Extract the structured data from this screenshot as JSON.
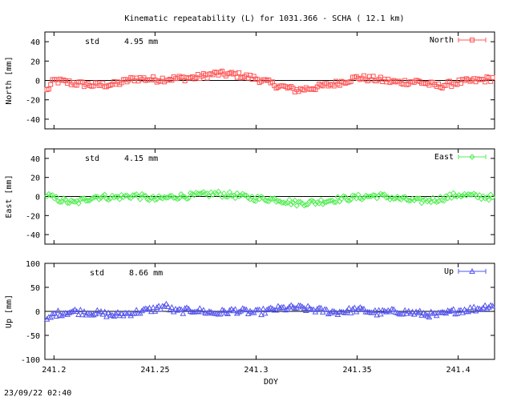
{
  "title": "Kinematic repeatability (L) for 1031.366 - SCHA  ( 12.1 km)",
  "footer": "23/09/22 02:40",
  "chart_data": [
    {
      "type": "scatter",
      "panel": "north",
      "series_name": "North",
      "color": "#ff5555",
      "marker": "square",
      "ylabel": "North [mm]",
      "ylim": [
        -50,
        50
      ],
      "yticks": [
        "40",
        "20",
        "0",
        "-20",
        "-40"
      ],
      "ytick_values": [
        40,
        20,
        0,
        -20,
        -40
      ],
      "stat_label": "std",
      "stat_value": "4.95 mm",
      "profile": [
        [
          241.196,
          -12
        ],
        [
          241.2,
          0
        ],
        [
          241.21,
          -3
        ],
        [
          241.22,
          -5
        ],
        [
          241.23,
          -4
        ],
        [
          241.24,
          2
        ],
        [
          241.25,
          1
        ],
        [
          241.26,
          2
        ],
        [
          241.27,
          3
        ],
        [
          241.28,
          7
        ],
        [
          241.29,
          6
        ],
        [
          241.3,
          2
        ],
        [
          241.31,
          -5
        ],
        [
          241.32,
          -10
        ],
        [
          241.33,
          -7
        ],
        [
          241.34,
          -3
        ],
        [
          241.35,
          3
        ],
        [
          241.36,
          1
        ],
        [
          241.37,
          -2
        ],
        [
          241.38,
          -1
        ],
        [
          241.39,
          -6
        ],
        [
          241.4,
          -2
        ],
        [
          241.41,
          0
        ],
        [
          241.417,
          2
        ]
      ]
    },
    {
      "type": "scatter",
      "panel": "east",
      "series_name": "East",
      "color": "#55ee55",
      "marker": "diamond",
      "ylabel": "East [mm]",
      "ylim": [
        -50,
        50
      ],
      "yticks": [
        "40",
        "20",
        "0",
        "-20",
        "-40"
      ],
      "ytick_values": [
        40,
        20,
        0,
        -20,
        -40
      ],
      "stat_label": "std",
      "stat_value": "4.15 mm",
      "profile": [
        [
          241.196,
          2
        ],
        [
          241.2,
          -2
        ],
        [
          241.21,
          -7
        ],
        [
          241.22,
          0
        ],
        [
          241.23,
          -1
        ],
        [
          241.24,
          1
        ],
        [
          241.25,
          -3
        ],
        [
          241.26,
          0
        ],
        [
          241.27,
          1
        ],
        [
          241.28,
          3
        ],
        [
          241.29,
          1
        ],
        [
          241.3,
          -2
        ],
        [
          241.31,
          -3
        ],
        [
          241.32,
          -7
        ],
        [
          241.33,
          -6
        ],
        [
          241.34,
          -3
        ],
        [
          241.35,
          -1
        ],
        [
          241.36,
          1
        ],
        [
          241.37,
          -2
        ],
        [
          241.38,
          -5
        ],
        [
          241.39,
          -3
        ],
        [
          241.4,
          2
        ],
        [
          241.41,
          0
        ],
        [
          241.417,
          -1
        ]
      ]
    },
    {
      "type": "scatter",
      "panel": "up",
      "series_name": "Up",
      "color": "#5555ee",
      "marker": "triangle",
      "ylabel": "Up [mm]",
      "ylim": [
        -100,
        100
      ],
      "yticks": [
        "100",
        "50",
        "0",
        "-50",
        "-100"
      ],
      "ytick_values": [
        100,
        50,
        0,
        -50,
        -100
      ],
      "stat_label": "std",
      "stat_value": "8.66 mm",
      "profile": [
        [
          241.196,
          -22
        ],
        [
          241.2,
          -5
        ],
        [
          241.21,
          0
        ],
        [
          241.22,
          -3
        ],
        [
          241.23,
          -8
        ],
        [
          241.24,
          -2
        ],
        [
          241.25,
          5
        ],
        [
          241.255,
          12
        ],
        [
          241.26,
          0
        ],
        [
          241.27,
          3
        ],
        [
          241.28,
          -4
        ],
        [
          241.29,
          2
        ],
        [
          241.3,
          -3
        ],
        [
          241.31,
          5
        ],
        [
          241.32,
          8
        ],
        [
          241.33,
          3
        ],
        [
          241.34,
          -2
        ],
        [
          241.35,
          4
        ],
        [
          241.36,
          -3
        ],
        [
          241.37,
          0
        ],
        [
          241.38,
          -4
        ],
        [
          241.39,
          -8
        ],
        [
          241.4,
          2
        ],
        [
          241.41,
          6
        ],
        [
          241.417,
          14
        ]
      ]
    }
  ],
  "x_axis": {
    "label": "DOY",
    "xlim": [
      241.1955,
      241.418
    ],
    "tick_labels": [
      "241.2",
      "241.25",
      "241.3",
      "241.35",
      "241.4"
    ],
    "tick_values": [
      241.2,
      241.25,
      241.3,
      241.35,
      241.4
    ]
  }
}
